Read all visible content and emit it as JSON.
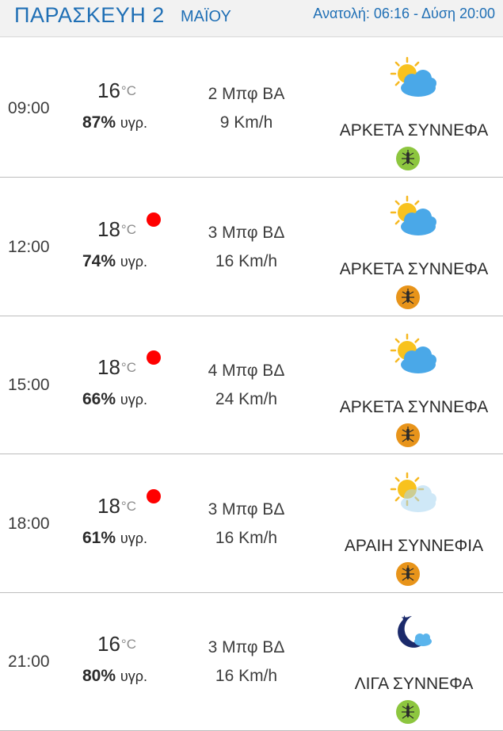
{
  "header": {
    "day": "ΠΑΡΑΣΚΕΥΗ 2",
    "month": "ΜΑΪΟΥ",
    "sun": "Ανατολή: 06:16  - Δύση 20:00"
  },
  "colors": {
    "header_text": "#1f6fb5",
    "alert_dot": "#ff0000",
    "mosquito_green": "#8dc63f",
    "mosquito_orange": "#e8941a"
  },
  "rows": [
    {
      "time": "09:00",
      "temp": "16",
      "unit": "°C",
      "humidity": "87%",
      "humidity_label": "υγρ.",
      "alert": false,
      "wind_force": "2 Μπφ ΒΑ",
      "wind_speed": "9 Km/h",
      "description": "ΑΡΚΕΤΑ ΣΥΝΝΕΦΑ",
      "icon": "partly-cloudy-icon",
      "mosquito_level": "green"
    },
    {
      "time": "12:00",
      "temp": "18",
      "unit": "°C",
      "humidity": "74%",
      "humidity_label": "υγρ.",
      "alert": true,
      "wind_force": "3 Μπφ ΒΔ",
      "wind_speed": "16 Km/h",
      "description": "ΑΡΚΕΤΑ ΣΥΝΝΕΦΑ",
      "icon": "partly-cloudy-icon",
      "mosquito_level": "orange"
    },
    {
      "time": "15:00",
      "temp": "18",
      "unit": "°C",
      "humidity": "66%",
      "humidity_label": "υγρ.",
      "alert": true,
      "wind_force": "4 Μπφ ΒΔ",
      "wind_speed": "24 Km/h",
      "description": "ΑΡΚΕΤΑ ΣΥΝΝΕΦΑ",
      "icon": "partly-cloudy-icon",
      "mosquito_level": "orange"
    },
    {
      "time": "18:00",
      "temp": "18",
      "unit": "°C",
      "humidity": "61%",
      "humidity_label": "υγρ.",
      "alert": true,
      "wind_force": "3 Μπφ ΒΔ",
      "wind_speed": "16 Km/h",
      "description": "ΑΡΑΙΗ ΣΥΝΝΕΦΙΑ",
      "icon": "few-clouds-icon",
      "mosquito_level": "orange"
    },
    {
      "time": "21:00",
      "temp": "16",
      "unit": "°C",
      "humidity": "80%",
      "humidity_label": "υγρ.",
      "alert": false,
      "wind_force": "3 Μπφ ΒΔ",
      "wind_speed": "16 Km/h",
      "description": "ΛΙΓΑ ΣΥΝΝΕΦΑ",
      "icon": "night-cloudy-icon",
      "mosquito_level": "green"
    }
  ]
}
